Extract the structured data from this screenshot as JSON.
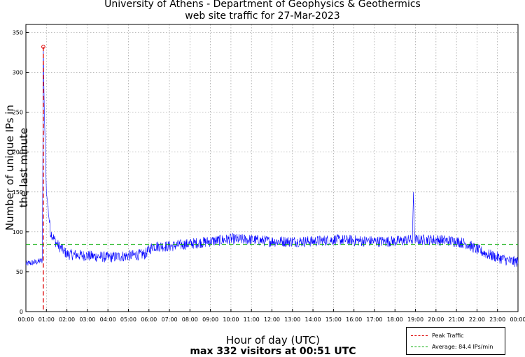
{
  "title_line1": "University of Athens - Department of Geophysics & Geothermics",
  "title_line2": "web site traffic for 27-Mar-2023",
  "xlabel": "Hour of day (UTC)",
  "subtitle": "max 332 visitors at 00:51 UTC",
  "legend": [
    {
      "label": "Peak Traffic",
      "color": "#dd0000"
    },
    {
      "label": "Average: 84.4 IPs/min",
      "color": "#00aa00"
    }
  ],
  "chart_data": {
    "type": "line",
    "xlabel": "Hour of day (UTC)",
    "ylabel": "Number of unique IPs in the last minute",
    "xlim_hours": [
      0,
      24
    ],
    "ylim": [
      0,
      360
    ],
    "x_ticks": [
      "00:00",
      "01:00",
      "02:00",
      "03:00",
      "04:00",
      "05:00",
      "06:00",
      "07:00",
      "08:00",
      "09:00",
      "10:00",
      "11:00",
      "12:00",
      "13:00",
      "14:00",
      "15:00",
      "16:00",
      "17:00",
      "18:00",
      "19:00",
      "20:00",
      "21:00",
      "22:00",
      "23:00",
      "00:00"
    ],
    "y_ticks": [
      0,
      50,
      100,
      150,
      200,
      250,
      300,
      350
    ],
    "grid": true,
    "series_color": "#0000ff",
    "peak": {
      "time": "00:51",
      "value": 332,
      "color": "#dd0000"
    },
    "average": {
      "value": 84.4,
      "color": "#00aa00"
    },
    "profile_hours": [
      0,
      0.5,
      0.8,
      0.85,
      0.9,
      1.0,
      1.2,
      1.5,
      2.0,
      3.0,
      4.0,
      5.0,
      5.8,
      6.2,
      7.0,
      8.0,
      9.0,
      10.0,
      11.0,
      12.0,
      13.0,
      14.0,
      15.0,
      16.0,
      17.0,
      18.0,
      18.85,
      18.9,
      18.95,
      19.0,
      20.0,
      21.0,
      21.5,
      22.0,
      22.5,
      23.0,
      23.5,
      24.0
    ],
    "profile_values": [
      60,
      62,
      64,
      332,
      250,
      150,
      100,
      85,
      72,
      70,
      68,
      70,
      72,
      82,
      82,
      85,
      88,
      91,
      90,
      88,
      88,
      88,
      90,
      89,
      88,
      88,
      90,
      150,
      95,
      90,
      90,
      88,
      85,
      78,
      72,
      68,
      64,
      62
    ]
  }
}
